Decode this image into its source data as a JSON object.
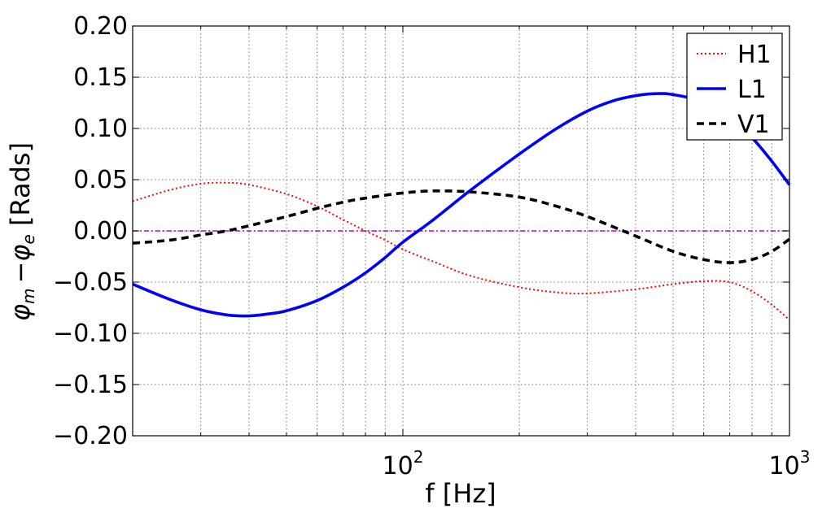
{
  "chart_data": {
    "type": "line",
    "title": "",
    "xlabel": "f [Hz]",
    "ylabel": "φm −φe [Rads]",
    "ylabel_parts": {
      "phi": "φ",
      "m": "m",
      "minus": "−",
      "e": "e",
      "unit": " [Rads]"
    },
    "x_scale": "log",
    "xlim": [
      20,
      1000
    ],
    "ylim": [
      -0.2,
      0.2
    ],
    "x_ticks": [
      {
        "value": 100,
        "base": "10",
        "exp": "2"
      },
      {
        "value": 1000,
        "base": "10",
        "exp": "3"
      }
    ],
    "y_ticks": [
      {
        "value": -0.2,
        "label": "−0.20"
      },
      {
        "value": -0.15,
        "label": "−0.15"
      },
      {
        "value": -0.1,
        "label": "−0.10"
      },
      {
        "value": -0.05,
        "label": "−0.05"
      },
      {
        "value": 0.0,
        "label": "0.00"
      },
      {
        "value": 0.05,
        "label": "0.05"
      },
      {
        "value": 0.1,
        "label": "0.10"
      },
      {
        "value": 0.15,
        "label": "0.15"
      },
      {
        "value": 0.2,
        "label": "0.20"
      }
    ],
    "grid": true,
    "legend_position": "top-right",
    "reference_line": {
      "y": 0.0,
      "color": "#bf00bf",
      "style": "dash-dot"
    },
    "series": [
      {
        "name": "H1",
        "color": "#ff0000",
        "style": "dotted",
        "x": [
          20,
          25,
          30,
          35,
          40,
          50,
          60,
          70,
          80,
          90,
          100,
          120,
          150,
          200,
          250,
          300,
          400,
          500,
          600,
          700,
          800,
          900,
          1000
        ],
        "y": [
          0.029,
          0.04,
          0.046,
          0.047,
          0.045,
          0.036,
          0.024,
          0.011,
          0.0,
          -0.009,
          -0.018,
          -0.03,
          -0.044,
          -0.055,
          -0.06,
          -0.061,
          -0.057,
          -0.052,
          -0.049,
          -0.05,
          -0.059,
          -0.072,
          -0.087
        ]
      },
      {
        "name": "L1",
        "color": "#0000ff",
        "style": "solid",
        "x": [
          20,
          25,
          30,
          35,
          40,
          45,
          50,
          60,
          70,
          80,
          90,
          100,
          120,
          150,
          200,
          250,
          300,
          350,
          400,
          450,
          500,
          600,
          700,
          800,
          900,
          1000
        ],
        "y": [
          -0.052,
          -0.067,
          -0.077,
          -0.082,
          -0.083,
          -0.081,
          -0.078,
          -0.068,
          -0.055,
          -0.041,
          -0.026,
          -0.011,
          0.011,
          0.04,
          0.075,
          0.1,
          0.117,
          0.127,
          0.132,
          0.134,
          0.133,
          0.126,
          0.111,
          0.091,
          0.068,
          0.045
        ]
      },
      {
        "name": "V1",
        "color": "#000000",
        "style": "dashed",
        "x": [
          20,
          25,
          30,
          35,
          40,
          50,
          60,
          70,
          80,
          100,
          120,
          150,
          200,
          250,
          300,
          400,
          500,
          600,
          700,
          800,
          900,
          1000
        ],
        "y": [
          -0.012,
          -0.009,
          -0.004,
          0.0,
          0.005,
          0.014,
          0.022,
          0.028,
          0.032,
          0.037,
          0.039,
          0.038,
          0.033,
          0.024,
          0.014,
          -0.005,
          -0.02,
          -0.028,
          -0.031,
          -0.028,
          -0.02,
          -0.008
        ]
      }
    ]
  }
}
